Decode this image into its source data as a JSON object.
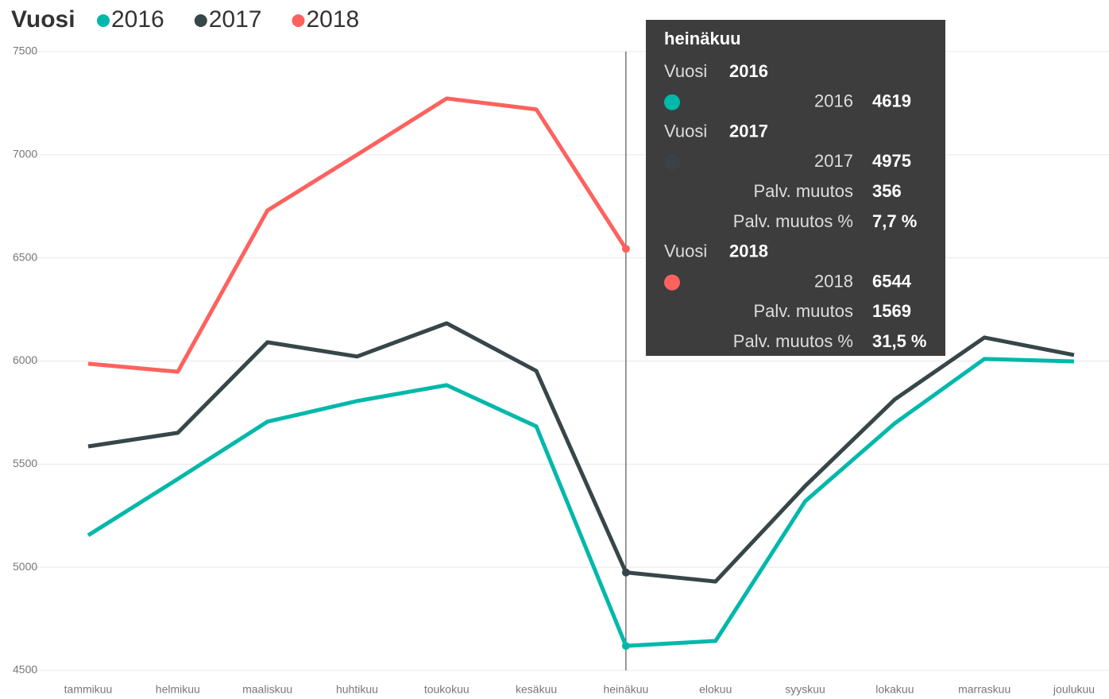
{
  "chart_data": {
    "type": "line",
    "legend_title": "Vuosi",
    "categories": [
      "tammikuu",
      "helmikuu",
      "maaliskuu",
      "huhtikuu",
      "toukokuu",
      "kesäkuu",
      "heinäkuu",
      "elokuu",
      "syyskuu",
      "lokakuu",
      "marraskuu",
      "joulukuu"
    ],
    "series": [
      {
        "name": "2016",
        "color": "#01B8AA",
        "values": [
          5155,
          5428,
          5706,
          5806,
          5883,
          5683,
          4619,
          4643,
          5320,
          5698,
          6010,
          5998
        ]
      },
      {
        "name": "2017",
        "color": "#374649",
        "values": [
          5586,
          5652,
          6091,
          6022,
          6183,
          5952,
          4975,
          4931,
          5394,
          5814,
          6114,
          6029
        ]
      },
      {
        "name": "2018",
        "color": "#FD625E",
        "values": [
          5987,
          5948,
          6730,
          7000,
          7273,
          7220,
          6544,
          null,
          null,
          null,
          null,
          null
        ]
      }
    ],
    "ylim": [
      4500,
      7500
    ],
    "yticks": [
      4500,
      5000,
      5500,
      6000,
      6500,
      7000,
      7500
    ],
    "grid": true,
    "tooltip": {
      "title": "heinäkuu",
      "category_index": 6,
      "groups": [
        {
          "label": "Vuosi",
          "year": "2016",
          "rows": [
            {
              "label": "2016",
              "value": "4619"
            }
          ]
        },
        {
          "label": "Vuosi",
          "year": "2017",
          "rows": [
            {
              "label": "2017",
              "value": "4975"
            },
            {
              "label": "Palv. muutos",
              "value": "356"
            },
            {
              "label": "Palv. muutos %",
              "value": "7,7 %"
            }
          ]
        },
        {
          "label": "Vuosi",
          "year": "2018",
          "rows": [
            {
              "label": "2018",
              "value": "6544"
            },
            {
              "label": "Palv. muutos",
              "value": "1569"
            },
            {
              "label": "Palv. muutos %",
              "value": "31,5 %"
            }
          ]
        }
      ]
    }
  }
}
